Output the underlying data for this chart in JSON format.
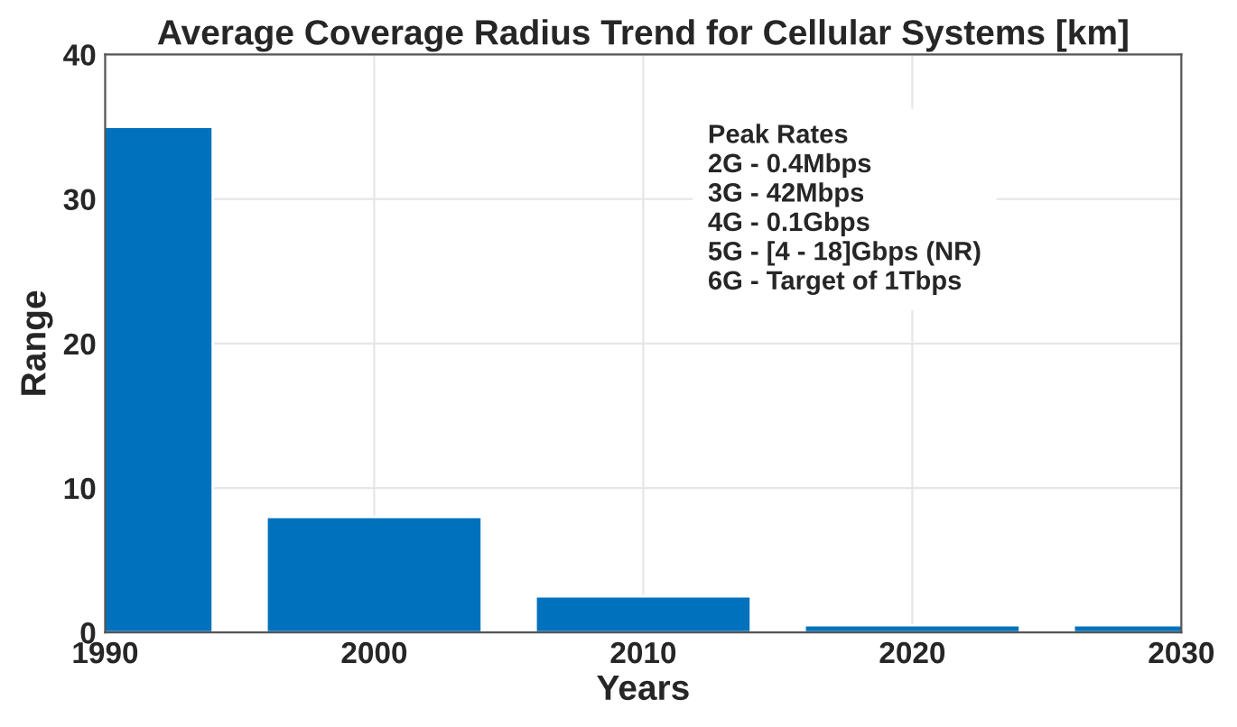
{
  "chart_data": {
    "type": "bar",
    "title": "Average Coverage Radius Trend for Cellular Systems [km]",
    "xlabel": "Years",
    "ylabel": "Range",
    "x": [
      1990,
      2000,
      2010,
      2020,
      2030
    ],
    "series": [
      {
        "color": "#0072bd",
        "values": [
          35,
          8,
          2.5,
          0.5,
          0.5
        ]
      }
    ],
    "xlim": [
      1990,
      2030
    ],
    "xticks": [
      1990,
      2000,
      2010,
      2020,
      2030
    ],
    "ylim": [
      0,
      40
    ],
    "yticks": [
      0,
      10,
      20,
      30,
      40
    ],
    "grid": true,
    "annotations": [
      "Peak Rates\n2G - 0.4Mbps\n3G - 42Mbps\n4G - 0.1Gbps\n5G - [4 - 18]Gbps (NR)\n6G - Target of 1Tbps"
    ]
  }
}
